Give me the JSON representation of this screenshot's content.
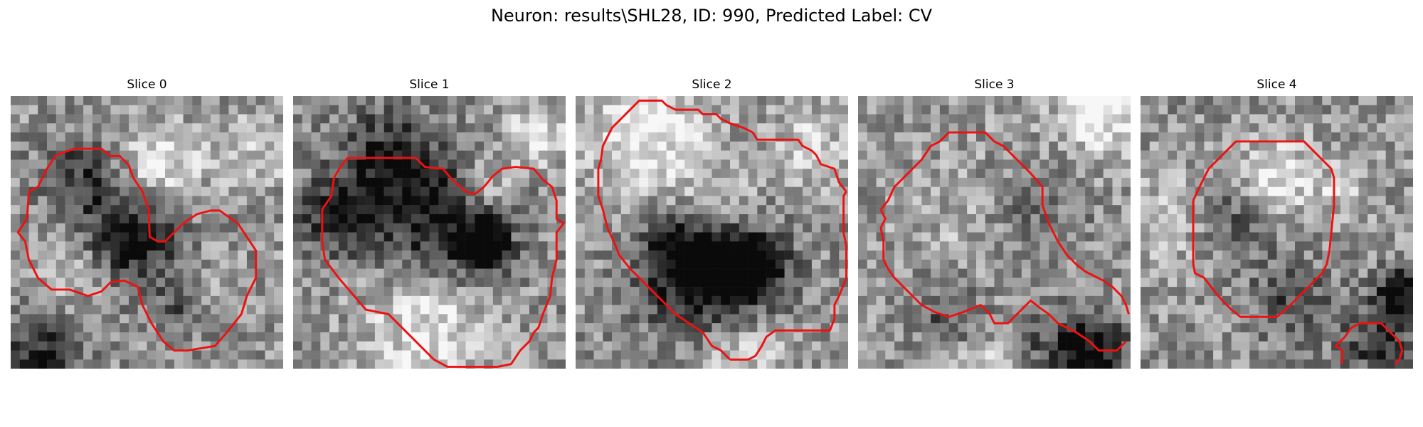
{
  "figure": {
    "title": "Neuron: results\\SHL28, ID: 990, Predicted Label: CV",
    "panels": [
      {
        "title": "Slice 0",
        "seed": 11,
        "dark": [
          [
            0.45,
            0.52,
            0.12,
            -0.55
          ],
          [
            0.25,
            0.3,
            0.1,
            -0.35
          ],
          [
            0.65,
            0.75,
            0.08,
            -0.35
          ],
          [
            0.12,
            0.95,
            0.1,
            -0.45
          ]
        ],
        "bright": [
          [
            0.55,
            0.25,
            0.1,
            0.35
          ],
          [
            0.72,
            0.72,
            0.08,
            0.25
          ],
          [
            0.25,
            0.65,
            0.08,
            0.2
          ],
          [
            0.9,
            0.2,
            0.1,
            0.2
          ]
        ],
        "contour_color": "#ee1111"
      },
      {
        "title": "Slice 1",
        "seed": 23,
        "dark": [
          [
            0.7,
            0.55,
            0.06,
            -0.8
          ],
          [
            0.55,
            0.48,
            0.16,
            -0.45
          ],
          [
            0.35,
            0.25,
            0.14,
            -0.45
          ],
          [
            0.15,
            0.45,
            0.1,
            -0.4
          ]
        ],
        "bright": [
          [
            0.5,
            0.85,
            0.16,
            0.35
          ],
          [
            0.9,
            0.15,
            0.08,
            0.35
          ],
          [
            0.7,
            0.32,
            0.07,
            0.3
          ]
        ],
        "contour_color": "#ee1111"
      },
      {
        "title": "Slice 2",
        "seed": 37,
        "dark": [
          [
            0.5,
            0.66,
            0.16,
            -0.7
          ],
          [
            0.65,
            0.64,
            0.08,
            -0.55
          ],
          [
            0.4,
            0.55,
            0.1,
            -0.3
          ]
        ],
        "bright": [
          [
            0.25,
            0.12,
            0.15,
            0.4
          ],
          [
            0.5,
            0.4,
            0.12,
            0.25
          ],
          [
            0.6,
            0.9,
            0.12,
            0.3
          ],
          [
            0.85,
            0.2,
            0.1,
            0.25
          ]
        ],
        "contour_color": "#ee1111"
      },
      {
        "title": "Slice 3",
        "seed": 51,
        "dark": [
          [
            0.85,
            0.95,
            0.1,
            -0.6
          ],
          [
            0.62,
            0.42,
            0.14,
            -0.25
          ],
          [
            0.35,
            0.8,
            0.1,
            -0.35
          ],
          [
            0.62,
            0.9,
            0.1,
            -0.3
          ]
        ],
        "bright": [
          [
            0.45,
            0.45,
            0.2,
            0.15
          ],
          [
            0.9,
            0.05,
            0.12,
            0.4
          ],
          [
            0.5,
            0.93,
            0.12,
            0.3
          ]
        ],
        "contour_color": "#ee1111"
      },
      {
        "title": "Slice 4",
        "seed": 67,
        "dark": [
          [
            0.95,
            0.72,
            0.06,
            -0.6
          ],
          [
            0.88,
            0.9,
            0.1,
            -0.4
          ],
          [
            0.35,
            0.45,
            0.1,
            -0.25
          ],
          [
            0.55,
            0.75,
            0.1,
            -0.3
          ]
        ],
        "bright": [
          [
            0.5,
            0.3,
            0.1,
            0.35
          ],
          [
            0.1,
            0.45,
            0.12,
            0.2
          ],
          [
            0.75,
            0.35,
            0.08,
            0.2
          ]
        ],
        "contour_color": "#ee1111"
      }
    ]
  }
}
